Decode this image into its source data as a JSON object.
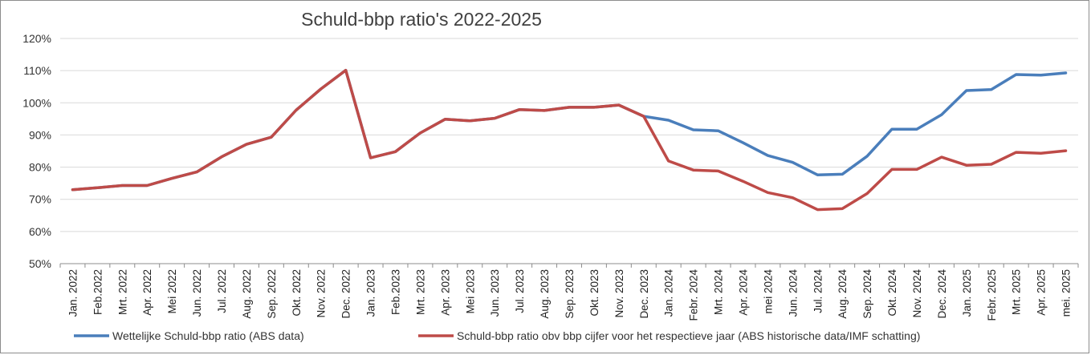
{
  "chart_data": {
    "type": "line",
    "title": "Schuld-bbp ratio's 2022-2025",
    "xlabel": "",
    "ylabel": "",
    "ylim": [
      0.5,
      1.2
    ],
    "yticks": [
      "50%",
      "60%",
      "70%",
      "80%",
      "90%",
      "100%",
      "110%",
      "120%"
    ],
    "grid": true,
    "legend_position": "bottom",
    "categories": [
      "Jan. 2022",
      "Feb.2022",
      "Mrt. 2022",
      "Apr. 2022",
      "Mei 2022",
      "Jun. 2022",
      "Jul. 2022",
      "Aug. 2022",
      "Sep. 2022",
      "Okt. 2022",
      "Nov. 2022",
      "Dec. 2022",
      "Jan. 2023",
      "Feb.2023",
      "Mrt. 2023",
      "Apr. 2023",
      "Mei 2023",
      "Jun. 2023",
      "Jul. 2023",
      "Aug. 2023",
      "Sep. 2023",
      "Okt. 2023",
      "Nov. 2023",
      "Dec. 2023",
      "Jan. 2024",
      "Febr. 2024",
      "Mrt. 2024",
      "Apr. 2024",
      "mei 2024",
      "Jun. 2024",
      "Jul. 2024",
      "Aug. 2024",
      "Sep. 2024",
      "Okt. 2024",
      "Nov. 2024",
      "Dec. 2024",
      "Jan. 2025",
      "Febr. 2025",
      "Mrt. 2025",
      "Apr. 2025",
      "mei. 2025"
    ],
    "series": [
      {
        "name": "Wettelijke Schuld-bbp ratio (ABS data)",
        "color": "#4a7ebb",
        "values": [
          0.73,
          0.736,
          0.743,
          0.743,
          0.765,
          0.785,
          0.832,
          0.871,
          0.893,
          0.977,
          1.043,
          1.101,
          0.829,
          0.848,
          0.906,
          0.949,
          0.944,
          0.952,
          0.979,
          0.976,
          0.986,
          0.986,
          0.993,
          0.958,
          0.946,
          0.916,
          0.913,
          0.876,
          0.836,
          0.815,
          0.776,
          0.778,
          0.834,
          0.918,
          0.918,
          0.963,
          1.038,
          1.041,
          1.088,
          1.086,
          1.093
        ]
      },
      {
        "name": "Schuld-bbp ratio obv bbp cijfer voor het respectieve jaar (ABS historische data/IMF schatting)",
        "color": "#be4b48",
        "values": [
          0.73,
          0.736,
          0.743,
          0.743,
          0.765,
          0.785,
          0.832,
          0.871,
          0.893,
          0.977,
          1.043,
          1.101,
          0.829,
          0.848,
          0.906,
          0.949,
          0.944,
          0.952,
          0.979,
          0.976,
          0.986,
          0.986,
          0.993,
          0.958,
          0.819,
          0.791,
          0.788,
          0.756,
          0.721,
          0.705,
          0.668,
          0.671,
          0.718,
          0.793,
          0.793,
          0.831,
          0.806,
          0.809,
          0.846,
          0.843,
          0.851
        ]
      }
    ]
  }
}
